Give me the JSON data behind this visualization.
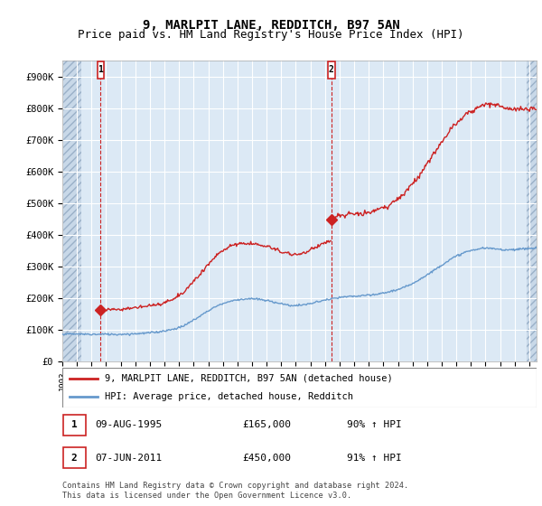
{
  "title": "9, MARLPIT LANE, REDDITCH, B97 5AN",
  "subtitle": "Price paid vs. HM Land Registry's House Price Index (HPI)",
  "title_fontsize": 10,
  "subtitle_fontsize": 9,
  "ylabel_ticks": [
    "£0",
    "£100K",
    "£200K",
    "£300K",
    "£400K",
    "£500K",
    "£600K",
    "£700K",
    "£800K",
    "£900K"
  ],
  "ytick_values": [
    0,
    100000,
    200000,
    300000,
    400000,
    500000,
    600000,
    700000,
    800000,
    900000
  ],
  "ylim": [
    0,
    950000
  ],
  "xlim_start": 1993.0,
  "xlim_end": 2025.5,
  "background_color": "#ffffff",
  "plot_bg_color": "#dce9f5",
  "hatch_bg_color": "#c8d8e8",
  "grid_color": "#ffffff",
  "transaction1_year": 1995.62,
  "transaction1_price": 165000,
  "transaction1_label": "1",
  "transaction2_year": 2011.44,
  "transaction2_price": 450000,
  "transaction2_label": "2",
  "legend_line1": "9, MARLPIT LANE, REDDITCH, B97 5AN (detached house)",
  "legend_line2": "HPI: Average price, detached house, Redditch",
  "table_row1": [
    "1",
    "09-AUG-1995",
    "£165,000",
    "90% ↑ HPI"
  ],
  "table_row2": [
    "2",
    "07-JUN-2011",
    "£450,000",
    "91% ↑ HPI"
  ],
  "footnote": "Contains HM Land Registry data © Crown copyright and database right 2024.\nThis data is licensed under the Open Government Licence v3.0.",
  "red_color": "#cc2222",
  "hpi_blue": "#6699cc"
}
